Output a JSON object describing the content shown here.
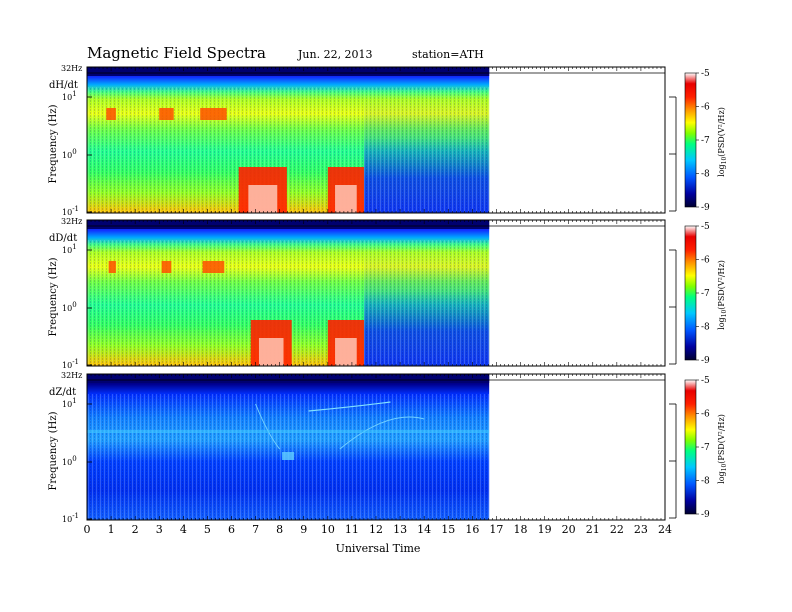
{
  "header": {
    "title": "Magnetic  Field  Spectra",
    "date": "Jun. 22, 2013",
    "station": "station=ATH"
  },
  "chart_data": {
    "type": "heatmap",
    "xlabel": "Universal Time",
    "xlim": [
      0,
      24
    ],
    "x_ticks": [
      "0",
      "1",
      "2",
      "3",
      "4",
      "5",
      "6",
      "7",
      "8",
      "9",
      "10",
      "11",
      "12",
      "13",
      "14",
      "15",
      "16",
      "17",
      "18",
      "19",
      "20",
      "21",
      "22",
      "23",
      "24"
    ],
    "data_end_hour": 16.7,
    "ylabel": "Frequency (Hz)",
    "y_scale": "log",
    "top_label": "32Hz",
    "colormap": "rainbow",
    "colorbar": {
      "ticks": [
        "-5",
        "-6",
        "-7",
        "-8",
        "-9"
      ],
      "range": [
        -9,
        -5
      ],
      "label_main": "log",
      "label_sub": "10",
      "label_rest": "(PSD(V²/Hz)",
      "colors": [
        "#000030",
        "#0000a0",
        "#0055ff",
        "#00c8ff",
        "#00ff80",
        "#80ff00",
        "#ffff00",
        "#ff9000",
        "#ff2000",
        "#e80000",
        "#ffffff"
      ]
    },
    "panels": [
      {
        "component": "dH/dt",
        "y_ticks": [
          "10",
          "10",
          "10"
        ],
        "y_exps": [
          "1",
          "0",
          "-1"
        ],
        "bursts": [
          {
            "start": 6.3,
            "end": 8.3
          },
          {
            "start": 10.0,
            "end": 11.5
          }
        ],
        "lines": [
          {
            "start": 0.8,
            "end": 1.2
          },
          {
            "start": 3.0,
            "end": 3.6
          },
          {
            "start": 4.7,
            "end": 5.8
          }
        ]
      },
      {
        "component": "dD/dt",
        "y_ticks": [
          "10",
          "10",
          "10"
        ],
        "y_exps": [
          "1",
          "0",
          "-1"
        ],
        "bursts": [
          {
            "start": 6.8,
            "end": 8.5
          },
          {
            "start": 10.0,
            "end": 11.5
          }
        ],
        "lines": [
          {
            "start": 0.9,
            "end": 1.2
          },
          {
            "start": 3.1,
            "end": 3.5
          },
          {
            "start": 4.8,
            "end": 5.7
          }
        ]
      },
      {
        "component": "dZ/dt",
        "y_ticks": [
          "10",
          "10",
          "10"
        ],
        "y_exps": [
          "1",
          "0",
          "-1"
        ],
        "bursts": [],
        "lines": []
      }
    ]
  }
}
